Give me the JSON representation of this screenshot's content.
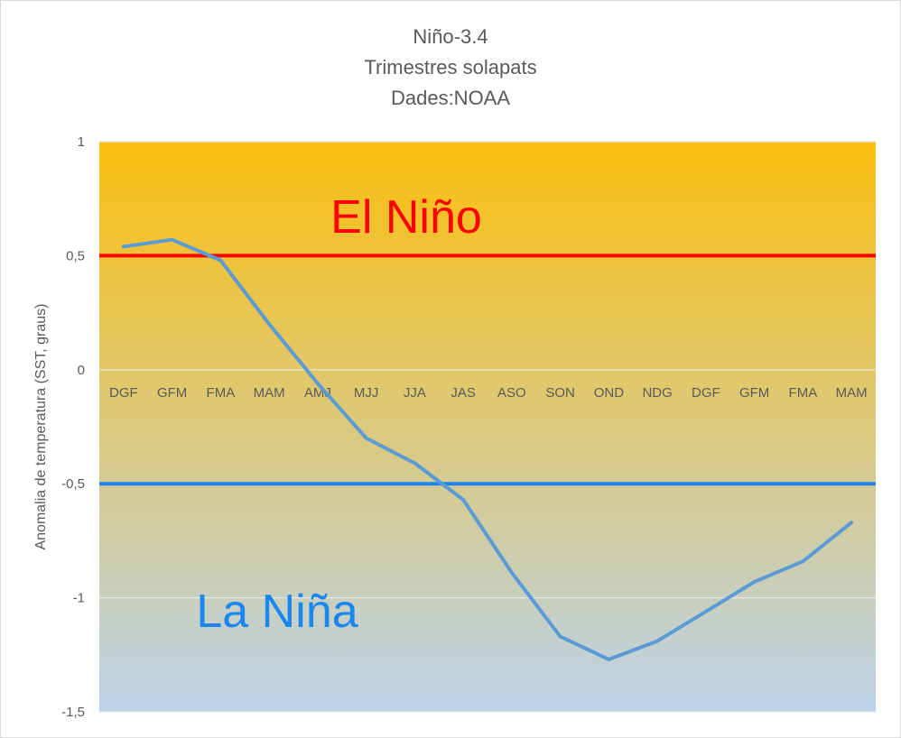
{
  "chart_data": {
    "type": "line",
    "title": "Niño-3.4",
    "subtitle_lines": [
      "Trimestres solapats",
      "Dades:NOAA"
    ],
    "ylabel": "Anomalia de temperatura (SST, graus)",
    "xlabel": "",
    "ylim": [
      -1.5,
      1
    ],
    "yticks": [
      1,
      0.5,
      0,
      -0.5,
      -1,
      -1.5
    ],
    "ytick_labels": [
      "1",
      "0,5",
      "0",
      "-0,5",
      "-1",
      "-1,5"
    ],
    "categories": [
      "DGF",
      "GFM",
      "FMA",
      "MAM",
      "AMJ",
      "MJJ",
      "JJA",
      "JAS",
      "ASO",
      "SON",
      "OND",
      "NDG",
      "DGF",
      "GFM",
      "FMA",
      "MAM"
    ],
    "series": [
      {
        "values": [
          0.54,
          0.57,
          0.48,
          0.2,
          -0.06,
          -0.3,
          -0.41,
          -0.57,
          -0.89,
          -1.17,
          -1.27,
          -1.19,
          -1.06,
          -0.93,
          -0.84,
          -0.67
        ],
        "color": "#5b9bd5"
      }
    ],
    "thresholds": [
      {
        "value": 0.5,
        "label": "El Niño",
        "color": "#ff0000"
      },
      {
        "value": -0.5,
        "label": "La Niña",
        "color": "#1a86f0"
      }
    ],
    "grid": true,
    "background_gradient": [
      "#fbbf0e",
      "#bcd3ea"
    ]
  }
}
